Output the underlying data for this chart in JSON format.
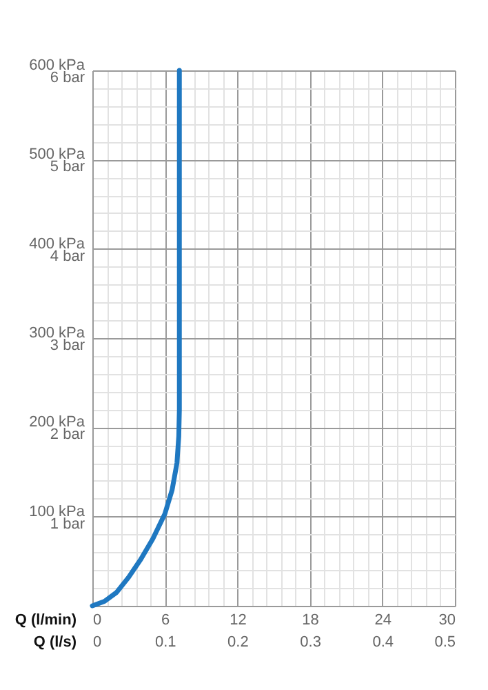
{
  "chart_data": {
    "type": "line",
    "xlabel": "Q (l/min)",
    "x2label": "Q (l/s)",
    "x": [
      0,
      1,
      2,
      3,
      4,
      5,
      6,
      6.6,
      7,
      7.15,
      7.2,
      7.2
    ],
    "series": [
      {
        "color": "#1f78c1",
        "values": [
          0,
          5,
          15,
          32,
          52,
          75,
          103,
          130,
          160,
          190,
          220,
          600
        ]
      }
    ],
    "xlim": [
      0,
      30
    ],
    "xticks": [
      0,
      6,
      12,
      18,
      24,
      30
    ],
    "x2lim": [
      0,
      0.5
    ],
    "x2ticks": [
      0,
      0.1,
      0.2,
      0.3,
      0.4,
      0.5
    ],
    "ylim": [
      0,
      600
    ],
    "yticks": [
      {
        "value": 100,
        "label": "100 kPa"
      },
      {
        "value": 200,
        "label": "200 kPa"
      },
      {
        "value": 300,
        "label": "300 kPa"
      },
      {
        "value": 400,
        "label": "400 kPa"
      },
      {
        "value": 500,
        "label": "500 kPa"
      },
      {
        "value": 600,
        "label": "600 kPa"
      }
    ],
    "y2lim": [
      0,
      6
    ],
    "y2ticks": [
      {
        "value": 1,
        "label": "1 bar"
      },
      {
        "value": 2,
        "label": "2 bar"
      },
      {
        "value": 3,
        "label": "3 bar"
      },
      {
        "value": 4,
        "label": "4 bar"
      },
      {
        "value": 5,
        "label": "5 bar"
      },
      {
        "value": 6,
        "label": "6 bar"
      }
    ],
    "grid": true,
    "line_style": "solid"
  }
}
